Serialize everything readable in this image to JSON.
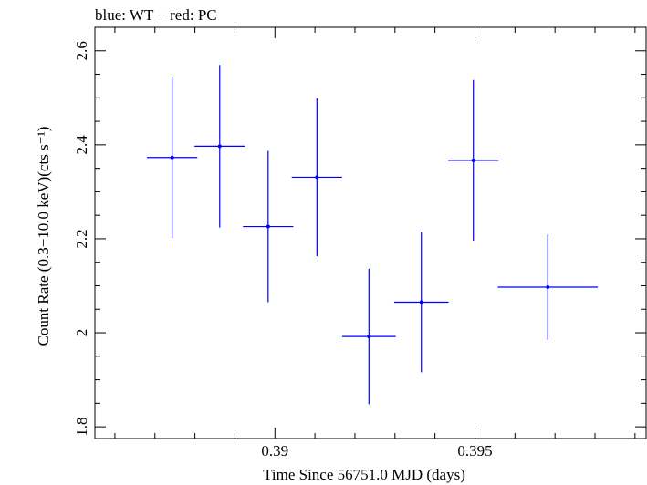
{
  "chart_data": {
    "type": "scatter",
    "title": "blue: WT − red: PC",
    "xlabel": "Time Since 56751.0 MJD (days)",
    "ylabel": "Count Rate (0.3−10.0 keV)(cts s⁻¹)",
    "xlim": [
      0.3855,
      0.3993
    ],
    "ylim": [
      1.775,
      2.65
    ],
    "x_ticks": [
      0.39,
      0.395
    ],
    "x_tick_labels": [
      "0.39",
      "0.395"
    ],
    "x_minor_step": 0.001,
    "y_ticks": [
      1.8,
      2.0,
      2.2,
      2.4,
      2.6
    ],
    "y_tick_labels": [
      "1.8",
      "2",
      "2.2",
      "2.4",
      "2.6"
    ],
    "y_minor_step": 0.05,
    "grid": false,
    "series": [
      {
        "color": "#0000ff",
        "points": [
          {
            "x": 0.38743,
            "xerr": [
              0.00063,
              0.00063
            ],
            "y": 2.373,
            "yerr": [
              0.172,
              0.172
            ]
          },
          {
            "x": 0.38862,
            "xerr": [
              0.00063,
              0.00063
            ],
            "y": 2.397,
            "yerr": [
              0.173,
              0.173
            ]
          },
          {
            "x": 0.38983,
            "xerr": [
              0.00063,
              0.00063
            ],
            "y": 2.226,
            "yerr": [
              0.161,
              0.161
            ]
          },
          {
            "x": 0.39105,
            "xerr": [
              0.00063,
              0.00063
            ],
            "y": 2.331,
            "yerr": [
              0.168,
              0.168
            ]
          },
          {
            "x": 0.39235,
            "xerr": [
              0.00067,
              0.00067
            ],
            "y": 1.992,
            "yerr": [
              0.144,
              0.144
            ]
          },
          {
            "x": 0.39366,
            "xerr": [
              0.00068,
              0.00068
            ],
            "y": 2.065,
            "yerr": [
              0.149,
              0.149
            ]
          },
          {
            "x": 0.39496,
            "xerr": [
              0.00063,
              0.00063
            ],
            "y": 2.367,
            "yerr": [
              0.171,
              0.171
            ]
          },
          {
            "x": 0.39682,
            "xerr": [
              0.00125,
              0.00125
            ],
            "y": 2.097,
            "yerr": [
              0.112,
              0.112
            ]
          }
        ]
      }
    ]
  }
}
